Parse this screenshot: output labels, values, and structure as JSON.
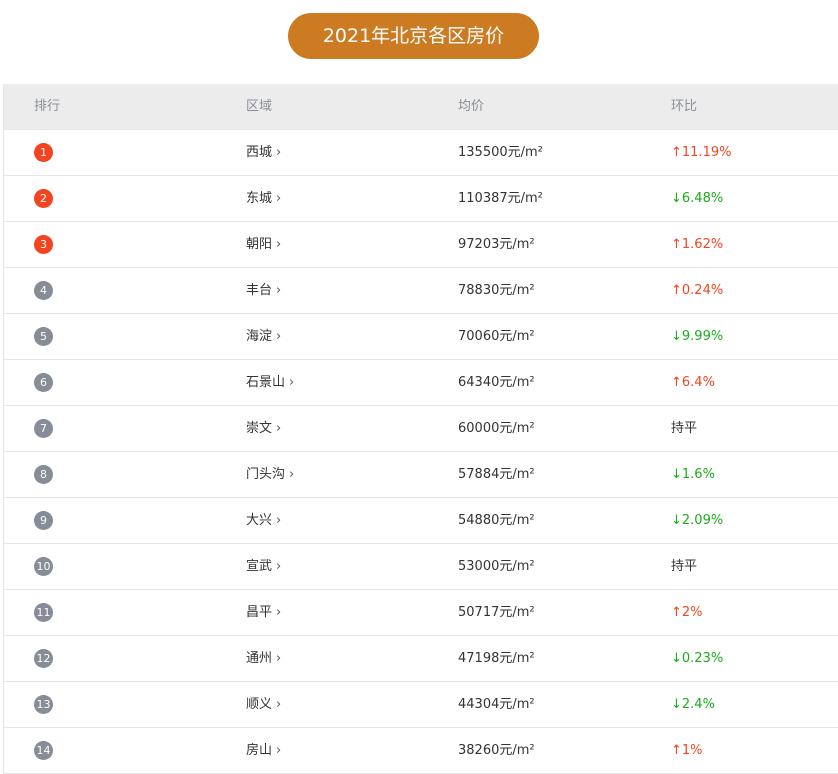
{
  "title": "2021年北京各区房价",
  "headers": {
    "rank": "排行",
    "district": "区域",
    "price": "均价",
    "change": "环比"
  },
  "colors": {
    "accent": "#cd7b23",
    "up": "#f2451f",
    "down": "#1aad19",
    "top_badge": "#f2451f",
    "badge": "#868d96"
  },
  "rows": [
    {
      "rank": "1",
      "district": "西城",
      "price": "135500元/m²",
      "change": "↑11.19%",
      "trend": "up"
    },
    {
      "rank": "2",
      "district": "东城",
      "price": "110387元/m²",
      "change": "↓6.48%",
      "trend": "down"
    },
    {
      "rank": "3",
      "district": "朝阳",
      "price": "97203元/m²",
      "change": "↑1.62%",
      "trend": "up"
    },
    {
      "rank": "4",
      "district": "丰台",
      "price": "78830元/m²",
      "change": "↑0.24%",
      "trend": "up"
    },
    {
      "rank": "5",
      "district": "海淀",
      "price": "70060元/m²",
      "change": "↓9.99%",
      "trend": "down"
    },
    {
      "rank": "6",
      "district": "石景山",
      "price": "64340元/m²",
      "change": "↑6.4%",
      "trend": "up"
    },
    {
      "rank": "7",
      "district": "崇文",
      "price": "60000元/m²",
      "change": "持平",
      "trend": "flat"
    },
    {
      "rank": "8",
      "district": "门头沟",
      "price": "57884元/m²",
      "change": "↓1.6%",
      "trend": "down"
    },
    {
      "rank": "9",
      "district": "大兴",
      "price": "54880元/m²",
      "change": "↓2.09%",
      "trend": "down"
    },
    {
      "rank": "10",
      "district": "宣武",
      "price": "53000元/m²",
      "change": "持平",
      "trend": "flat"
    },
    {
      "rank": "11",
      "district": "昌平",
      "price": "50717元/m²",
      "change": "↑2%",
      "trend": "up"
    },
    {
      "rank": "12",
      "district": "通州",
      "price": "47198元/m²",
      "change": "↓0.23%",
      "trend": "down"
    },
    {
      "rank": "13",
      "district": "顺义",
      "price": "44304元/m²",
      "change": "↓2.4%",
      "trend": "down"
    },
    {
      "rank": "14",
      "district": "房山",
      "price": "38260元/m²",
      "change": "↑1%",
      "trend": "up"
    }
  ]
}
